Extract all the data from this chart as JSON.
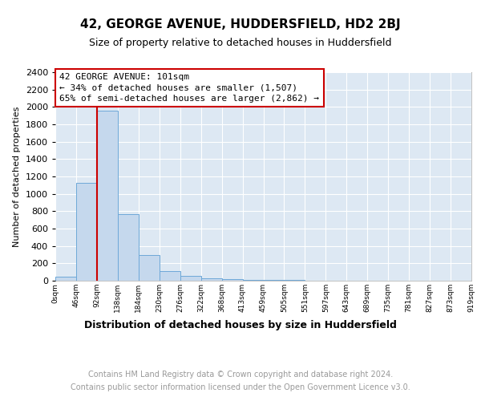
{
  "title": "42, GEORGE AVENUE, HUDDERSFIELD, HD2 2BJ",
  "subtitle": "Size of property relative to detached houses in Huddersfield",
  "xlabel": "Distribution of detached houses by size in Huddersfield",
  "ylabel": "Number of detached properties",
  "bar_values": [
    50,
    1130,
    1960,
    770,
    300,
    110,
    60,
    30,
    20,
    10,
    5,
    5,
    3,
    2,
    1,
    0,
    0,
    0,
    0,
    0
  ],
  "x_labels": [
    "0sqm",
    "46sqm",
    "92sqm",
    "138sqm",
    "184sqm",
    "230sqm",
    "276sqm",
    "322sqm",
    "368sqm",
    "413sqm",
    "459sqm",
    "505sqm",
    "551sqm",
    "597sqm",
    "643sqm",
    "689sqm",
    "735sqm",
    "781sqm",
    "827sqm",
    "873sqm",
    "919sqm"
  ],
  "bar_color": "#c5d8ed",
  "bar_edge_color": "#6ea8d8",
  "vline_color": "#cc0000",
  "vline_pos": 1.5,
  "annotation_title": "42 GEORGE AVENUE: 101sqm",
  "annotation_line1": "← 34% of detached houses are smaller (1,507)",
  "annotation_line2": "65% of semi-detached houses are larger (2,862) →",
  "annotation_box_color": "#cc0000",
  "ylim": [
    0,
    2400
  ],
  "yticks": [
    0,
    200,
    400,
    600,
    800,
    1000,
    1200,
    1400,
    1600,
    1800,
    2000,
    2200,
    2400
  ],
  "bg_color": "#dde8f3",
  "footer_line1": "Contains HM Land Registry data © Crown copyright and database right 2024.",
  "footer_line2": "Contains public sector information licensed under the Open Government Licence v3.0."
}
